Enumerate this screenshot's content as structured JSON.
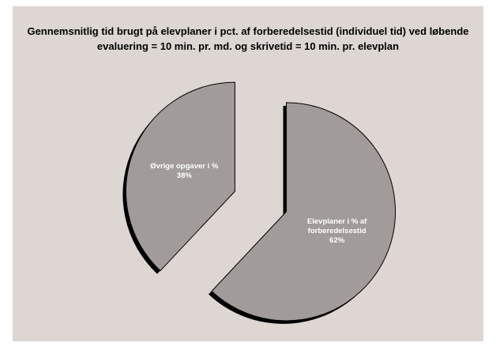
{
  "chart_data": {
    "type": "pie",
    "title": "Gennemsnitlig tid brugt på elevplaner i pct. af forberedelsestid (individuel tid) ved løbende evaluering = 10 min. pr. md. og skrivetid = 10 min. pr. elevplan",
    "categories": [
      "Elevplaner i % af forberedelsestid",
      "Øvrige opgaver i %"
    ],
    "values": [
      62,
      38
    ],
    "value_labels": [
      "62%",
      "38%"
    ],
    "color": "#a19c99"
  }
}
